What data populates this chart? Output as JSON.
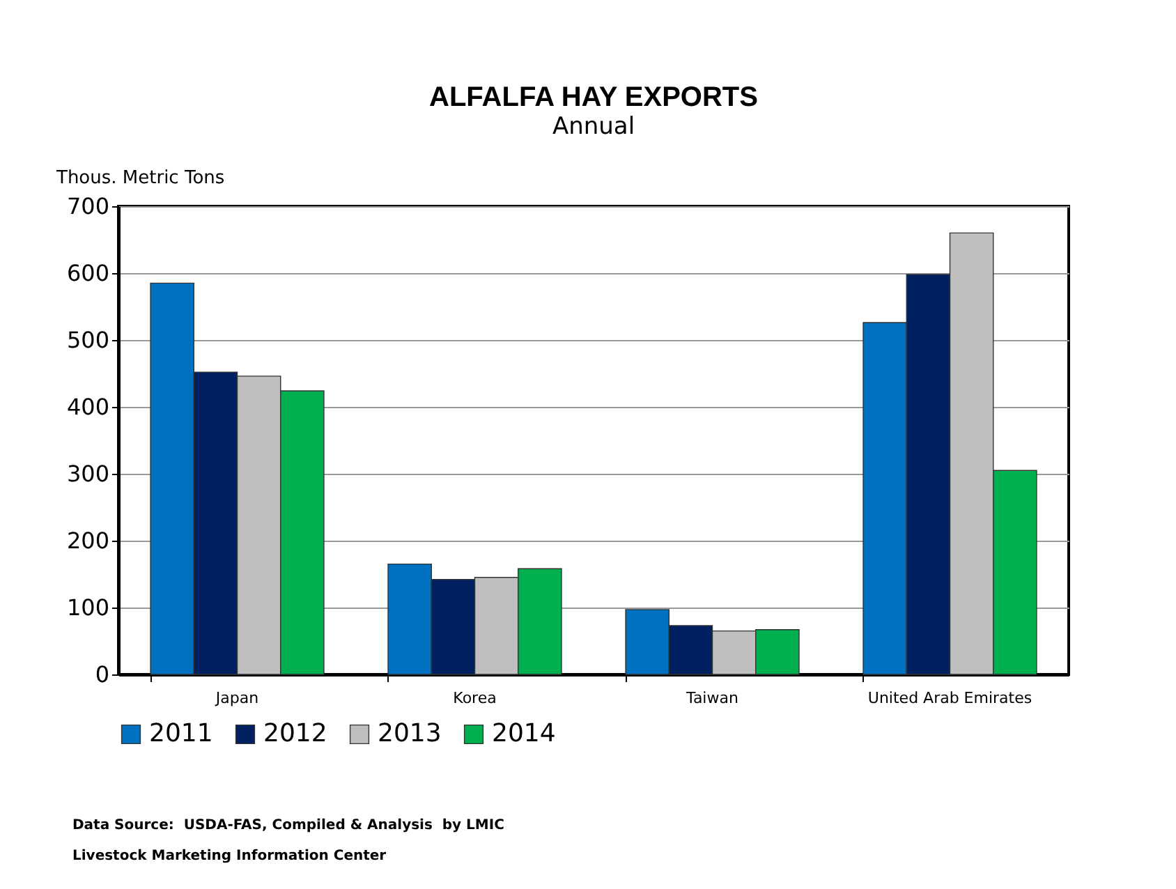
{
  "chart_data": {
    "type": "bar",
    "title": "ALFALFA HAY EXPORTS",
    "subtitle": "Annual",
    "ylabel": "Thous. Metric Tons",
    "categories": [
      "Japan",
      "Korea",
      "Taiwan",
      "United Arab Emirates"
    ],
    "series": [
      {
        "name": "2011",
        "color": "#0070c0",
        "values": [
          585,
          165,
          97,
          526
        ]
      },
      {
        "name": "2012",
        "color": "#002060",
        "values": [
          452,
          142,
          73,
          598
        ]
      },
      {
        "name": "2013",
        "color": "#bfbfbf",
        "values": [
          446,
          145,
          65,
          660
        ]
      },
      {
        "name": "2014",
        "color": "#00b050",
        "values": [
          424,
          158,
          67,
          305
        ]
      }
    ],
    "ylim": [
      0,
      700
    ],
    "yticks": [
      0,
      100,
      200,
      300,
      400,
      500,
      600,
      700
    ],
    "grid": "y",
    "legend": "bottom",
    "annotations": [
      "Data Source:  USDA-FAS, Compiled & Analysis  by LMIC",
      "Livestock Marketing Information Center"
    ]
  }
}
